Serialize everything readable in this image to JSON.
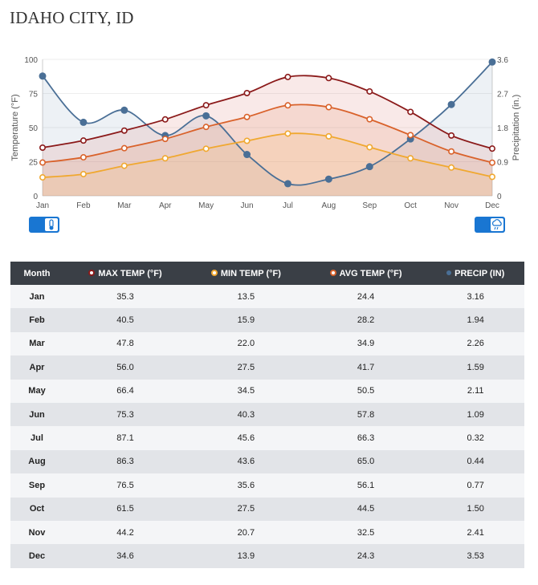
{
  "page": {
    "title": "IDAHO CITY, ID"
  },
  "chart_data": {
    "type": "line",
    "categories": [
      "Jan",
      "Feb",
      "Mar",
      "Apr",
      "May",
      "Jun",
      "Jul",
      "Aug",
      "Sep",
      "Oct",
      "Nov",
      "Dec"
    ],
    "ylabel": "Temperature (°F)",
    "y2label": "Precipitation (in.)",
    "ylim": [
      0,
      100
    ],
    "y2lim": [
      0,
      3.6
    ],
    "yticks": [
      "0",
      "25",
      "50",
      "75",
      "100"
    ],
    "y2ticks": [
      "0",
      "0.9",
      "1.8",
      "2.7",
      "3.6"
    ],
    "series": [
      {
        "name": "MAX TEMP (°F)",
        "color": "#8b1a1a",
        "axis": "left",
        "values": [
          35.3,
          40.5,
          47.8,
          56.0,
          66.4,
          75.3,
          87.1,
          86.3,
          76.5,
          61.5,
          44.2,
          34.6
        ]
      },
      {
        "name": "MIN TEMP (°F)",
        "color": "#f0a830",
        "axis": "left",
        "values": [
          13.5,
          15.9,
          22.0,
          27.5,
          34.5,
          40.3,
          45.6,
          43.6,
          35.6,
          27.5,
          20.7,
          13.9
        ]
      },
      {
        "name": "AVG TEMP (°F)",
        "color": "#d9622b",
        "axis": "left",
        "values": [
          24.4,
          28.2,
          34.9,
          41.7,
          50.5,
          57.8,
          66.3,
          65.0,
          56.1,
          44.5,
          32.5,
          24.3
        ]
      },
      {
        "name": "PRECIP (IN)",
        "color": "#4a6f96",
        "axis": "right",
        "values": [
          3.16,
          1.94,
          2.26,
          1.59,
          2.11,
          1.09,
          0.32,
          0.44,
          0.77,
          1.5,
          2.41,
          3.53
        ]
      }
    ]
  },
  "table": {
    "headers": {
      "month": "Month",
      "max": "MAX TEMP (°F)",
      "min": "MIN TEMP (°F)",
      "avg": "AVG TEMP (°F)",
      "precip": "PRECIP (IN)"
    },
    "rows": [
      [
        "Jan",
        "35.3",
        "13.5",
        "24.4",
        "3.16"
      ],
      [
        "Feb",
        "40.5",
        "15.9",
        "28.2",
        "1.94"
      ],
      [
        "Mar",
        "47.8",
        "22.0",
        "34.9",
        "2.26"
      ],
      [
        "Apr",
        "56.0",
        "27.5",
        "41.7",
        "1.59"
      ],
      [
        "May",
        "66.4",
        "34.5",
        "50.5",
        "2.11"
      ],
      [
        "Jun",
        "75.3",
        "40.3",
        "57.8",
        "1.09"
      ],
      [
        "Jul",
        "87.1",
        "45.6",
        "66.3",
        "0.32"
      ],
      [
        "Aug",
        "86.3",
        "43.6",
        "65.0",
        "0.44"
      ],
      [
        "Sep",
        "76.5",
        "35.6",
        "56.1",
        "0.77"
      ],
      [
        "Oct",
        "61.5",
        "27.5",
        "44.5",
        "1.50"
      ],
      [
        "Nov",
        "44.2",
        "20.7",
        "32.5",
        "2.41"
      ],
      [
        "Dec",
        "34.6",
        "13.9",
        "24.3",
        "3.53"
      ]
    ]
  },
  "controls": {
    "left_icon": "thermometer-icon",
    "right_icon": "cloud-rain-icon"
  }
}
